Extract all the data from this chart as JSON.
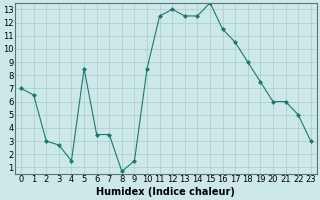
{
  "x": [
    0,
    1,
    2,
    3,
    4,
    5,
    6,
    7,
    8,
    9,
    10,
    11,
    12,
    13,
    14,
    15,
    16,
    17,
    18,
    19,
    20,
    21,
    22,
    23
  ],
  "y": [
    7,
    6.5,
    3,
    2.7,
    1.5,
    8.5,
    3.5,
    3.5,
    0.7,
    1.5,
    8.5,
    12.5,
    13,
    12.5,
    12.5,
    13.5,
    11.5,
    10.5,
    9,
    7.5,
    6,
    6,
    5,
    3
  ],
  "line_color": "#1a7a6e",
  "marker": "D",
  "marker_size": 2,
  "bg_color": "#cce8e8",
  "grid_color": "#aacccc",
  "xlabel": "Humidex (Indice chaleur)",
  "xlim": [
    -0.5,
    23.5
  ],
  "ylim": [
    0.5,
    13.5
  ],
  "xticks": [
    0,
    1,
    2,
    3,
    4,
    5,
    6,
    7,
    8,
    9,
    10,
    11,
    12,
    13,
    14,
    15,
    16,
    17,
    18,
    19,
    20,
    21,
    22,
    23
  ],
  "yticks": [
    1,
    2,
    3,
    4,
    5,
    6,
    7,
    8,
    9,
    10,
    11,
    12,
    13
  ],
  "tick_fontsize": 6,
  "label_fontsize": 7
}
